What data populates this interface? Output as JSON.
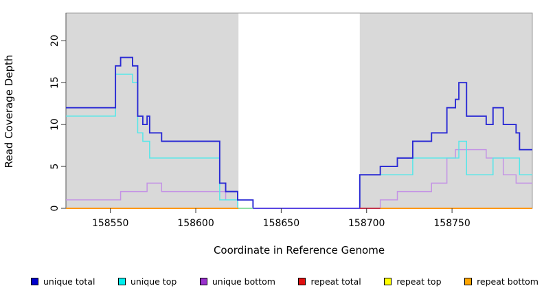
{
  "figure": {
    "xlabel": "Coordinate in Reference Genome",
    "ylabel": "Read Coverage Depth"
  },
  "legend": {
    "position": "bottom",
    "items": [
      {
        "label": "unique total",
        "color": "#0000CC"
      },
      {
        "label": "unique top",
        "color": "#00EEEE"
      },
      {
        "label": "unique bottom",
        "color": "#9932CC"
      },
      {
        "label": "repeat total",
        "color": "#E01010"
      },
      {
        "label": "repeat top",
        "color": "#FFFF00"
      },
      {
        "label": "repeat bottom",
        "color": "#FFA500"
      }
    ]
  },
  "chart_data": {
    "type": "line",
    "subtype": "step",
    "title": "",
    "xlabel": "Coordinate in Reference Genome",
    "ylabel": "Read Coverage Depth",
    "xlim": [
      158524,
      158797
    ],
    "ylim": [
      0,
      23.3
    ],
    "x_ticks": [
      158550,
      158600,
      158650,
      158700,
      158750
    ],
    "y_ticks": [
      0,
      5,
      10,
      15,
      20
    ],
    "grid": false,
    "legend_position": "bottom",
    "shade_color": "#D9D9D9",
    "shaded_regions": [
      {
        "from": 158524,
        "to": 158625
      },
      {
        "from": 158696,
        "to": 158797
      }
    ],
    "series": [
      {
        "name": "unique bottom",
        "plot_color": "#C493E5",
        "line_width": 1.5,
        "step_points": [
          [
            158524,
            1
          ],
          [
            158556,
            2
          ],
          [
            158571.5,
            3
          ],
          [
            158580,
            2
          ],
          [
            158617.5,
            1
          ],
          [
            158633.5,
            0
          ],
          [
            158708,
            1
          ],
          [
            158718,
            2
          ],
          [
            158738,
            3
          ],
          [
            158747,
            6
          ],
          [
            158752,
            7
          ],
          [
            158770,
            6
          ],
          [
            158780,
            4
          ],
          [
            158787.5,
            3
          ]
        ]
      },
      {
        "name": "unique top",
        "plot_color": "#55E7E9",
        "line_width": 1.5,
        "step_points": [
          [
            158524,
            11
          ],
          [
            158553,
            16
          ],
          [
            158563,
            15
          ],
          [
            158566,
            9
          ],
          [
            158569,
            8
          ],
          [
            158573,
            6
          ],
          [
            158614,
            1
          ],
          [
            158624.5,
            0
          ],
          [
            158696,
            4
          ],
          [
            158727,
            6
          ],
          [
            158754,
            8
          ],
          [
            158758.5,
            4
          ],
          [
            158774,
            6
          ],
          [
            158789.5,
            4
          ]
        ]
      },
      {
        "name": "unique total",
        "plot_color": "#2A2AD4",
        "line_width": 1.9,
        "step_points": [
          [
            158524,
            12
          ],
          [
            158553,
            17
          ],
          [
            158556,
            18
          ],
          [
            158563,
            17
          ],
          [
            158566,
            11
          ],
          [
            158569,
            10
          ],
          [
            158571.5,
            11
          ],
          [
            158573,
            9
          ],
          [
            158580,
            8
          ],
          [
            158614,
            3
          ],
          [
            158617.5,
            2
          ],
          [
            158624.5,
            1
          ],
          [
            158633.5,
            0
          ],
          [
            158696,
            4
          ],
          [
            158708,
            5
          ],
          [
            158718,
            6
          ],
          [
            158727,
            8
          ],
          [
            158738,
            9
          ],
          [
            158747,
            12
          ],
          [
            158752,
            13
          ],
          [
            158754,
            15
          ],
          [
            158758.5,
            11
          ],
          [
            158770,
            10
          ],
          [
            158774,
            12
          ],
          [
            158780,
            10
          ],
          [
            158787.5,
            9
          ],
          [
            158789.5,
            7
          ]
        ]
      },
      {
        "name": "repeat total",
        "plot_color": "#C4344C",
        "line_width": 1.5,
        "step_points": [
          [
            158524,
            0
          ]
        ]
      },
      {
        "name": "repeat top",
        "plot_color": "#FFFF00",
        "line_width": 1.5,
        "step_points": [
          [
            158524,
            0
          ]
        ]
      },
      {
        "name": "repeat bottom",
        "plot_color": "#FF9714",
        "line_width": 2.0,
        "step_points": [
          [
            158524,
            0
          ]
        ]
      }
    ],
    "zero_line_segments": [
      {
        "from": 158524,
        "to": 158625,
        "color": "#FF9714"
      },
      {
        "from": 158625,
        "to": 158633.5,
        "color": "#8FE0A3"
      },
      {
        "from": 158633.5,
        "to": 158696,
        "color": "#5946E2"
      },
      {
        "from": 158696,
        "to": 158708,
        "color": "#C4344C"
      },
      {
        "from": 158708,
        "to": 158797,
        "color": "#FF9714"
      }
    ]
  }
}
